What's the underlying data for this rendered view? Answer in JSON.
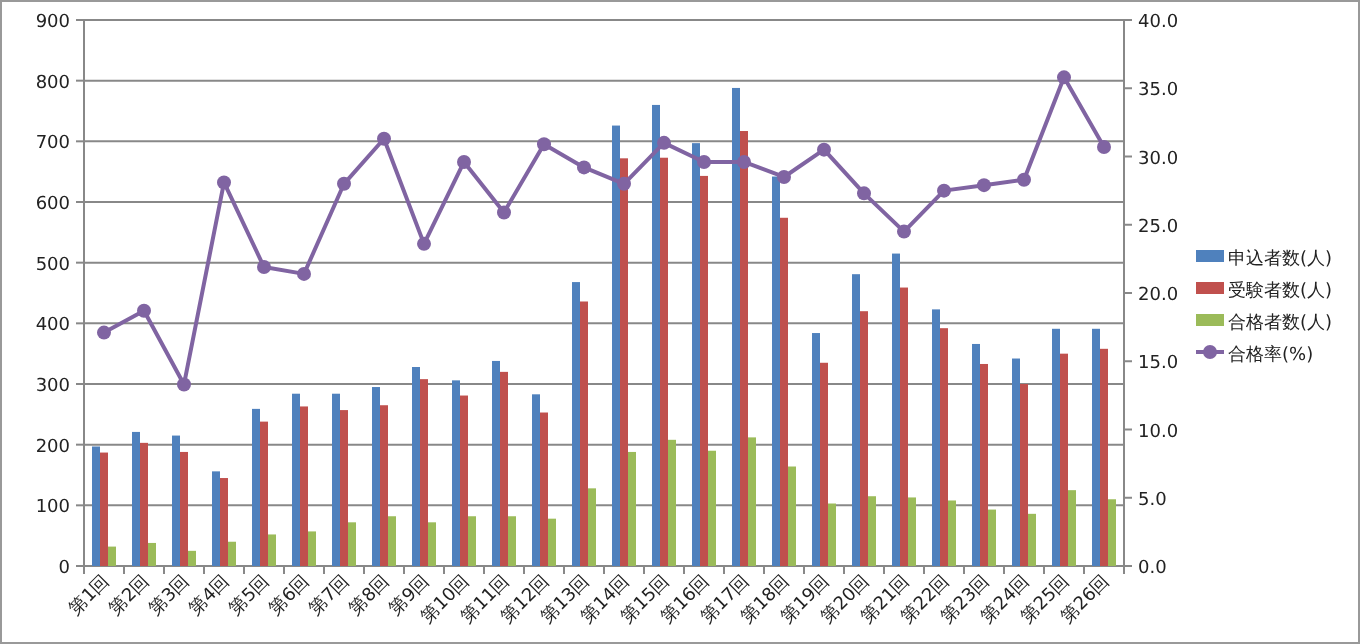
{
  "chart_data": {
    "type": "bar",
    "categories": [
      "第1回",
      "第2回",
      "第3回",
      "第4回",
      "第5回",
      "第6回",
      "第7回",
      "第8回",
      "第9回",
      "第10回",
      "第11回",
      "第12回",
      "第13回",
      "第14回",
      "第15回",
      "第16回",
      "第17回",
      "第18回",
      "第19回",
      "第20回",
      "第21回",
      "第22回",
      "第23回",
      "第24回",
      "第25回",
      "第26回"
    ],
    "series": [
      {
        "name": "申込者数(人)",
        "color": "#4f81bd",
        "values": [
          197,
          221,
          215,
          156,
          259,
          284,
          284,
          295,
          328,
          306,
          338,
          283,
          468,
          726,
          760,
          697,
          788,
          642,
          384,
          481,
          515,
          423,
          366,
          342,
          391,
          391
        ]
      },
      {
        "name": "受験者数(人)",
        "color": "#c0504d",
        "values": [
          187,
          203,
          188,
          145,
          238,
          263,
          257,
          265,
          308,
          281,
          320,
          253,
          436,
          672,
          673,
          643,
          717,
          574,
          335,
          420,
          459,
          392,
          333,
          300,
          350,
          358
        ]
      },
      {
        "name": "合格者数(人)",
        "color": "#9bbb59",
        "values": [
          32,
          38,
          25,
          40,
          52,
          57,
          72,
          82,
          72,
          82,
          82,
          78,
          128,
          188,
          208,
          190,
          212,
          164,
          103,
          115,
          113,
          108,
          93,
          86,
          125,
          110
        ]
      },
      {
        "name": "合格率(%)",
        "color": "#8064a2",
        "type": "line",
        "axis": "y2",
        "values": [
          17.1,
          18.7,
          13.3,
          28.1,
          21.9,
          21.4,
          28.0,
          31.3,
          23.6,
          29.6,
          25.9,
          30.9,
          29.2,
          28.0,
          31.0,
          29.6,
          29.6,
          28.5,
          30.5,
          27.3,
          24.5,
          27.5,
          27.9,
          28.3,
          35.8,
          30.7
        ]
      }
    ],
    "ylim": [
      0,
      900
    ],
    "yticks": [
      0,
      100,
      200,
      300,
      400,
      500,
      600,
      700,
      800,
      900
    ],
    "y2lim": [
      0,
      40
    ],
    "y2ticks": [
      {
        "value": 0,
        "label": "0.0"
      },
      {
        "value": 5,
        "label": "5.0"
      },
      {
        "value": 10,
        "label": "10.0"
      },
      {
        "value": 15,
        "label": "15.0"
      },
      {
        "value": 20,
        "label": "20.0"
      },
      {
        "value": 25,
        "label": "25.0"
      },
      {
        "value": 30,
        "label": "30.0"
      },
      {
        "value": 35,
        "label": "35.0"
      },
      {
        "value": 40,
        "label": "40.0"
      }
    ],
    "grid": "y",
    "legend": "right",
    "marker": "circle"
  }
}
